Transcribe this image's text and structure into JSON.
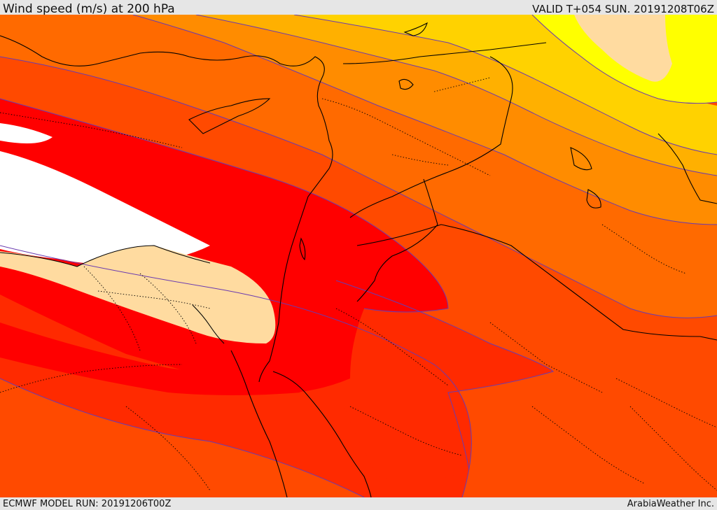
{
  "header": {
    "title": "Wind speed (m/s) at 200 hPa",
    "valid": "VALID T+054 SUN. 20191208T06Z"
  },
  "footer": {
    "model_run": "ECMWF MODEL RUN: 20191206T00Z",
    "brand": "ArabiaWeather Inc."
  },
  "colors": {
    "band_orange_red": "#ff4a00",
    "band_red_orange": "#ff2a00",
    "band_red": "#ff0000",
    "band_orange": "#ff6a00",
    "band_amber": "#ff8c00",
    "band_gold": "#ffb000",
    "band_yellow_gold": "#ffd200",
    "band_yellow": "#ffff00",
    "band_wheat": "#ffdba0",
    "band_white": "#ffffff",
    "contour": "#6a3bb0",
    "borders": "#000000"
  }
}
